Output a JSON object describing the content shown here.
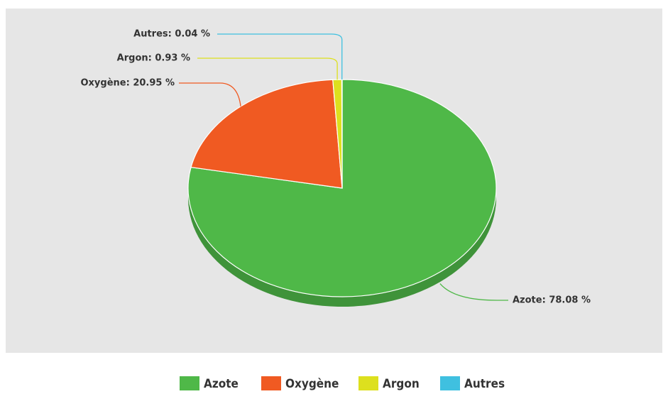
{
  "chart_data": {
    "type": "pie",
    "categories": [
      "Azote",
      "Oxygène",
      "Argon",
      "Autres"
    ],
    "values": [
      78.08,
      20.95,
      0.93,
      0.04
    ],
    "value_labels": [
      "Azote: 78.08 %",
      "Oxygène: 20.95 %",
      "Argon: 0.93 %",
      "Autres: 0.04 %"
    ],
    "colors": [
      "#4fb848",
      "#f05a22",
      "#dde01e",
      "#3fc0e0"
    ],
    "legend": "bottom"
  }
}
